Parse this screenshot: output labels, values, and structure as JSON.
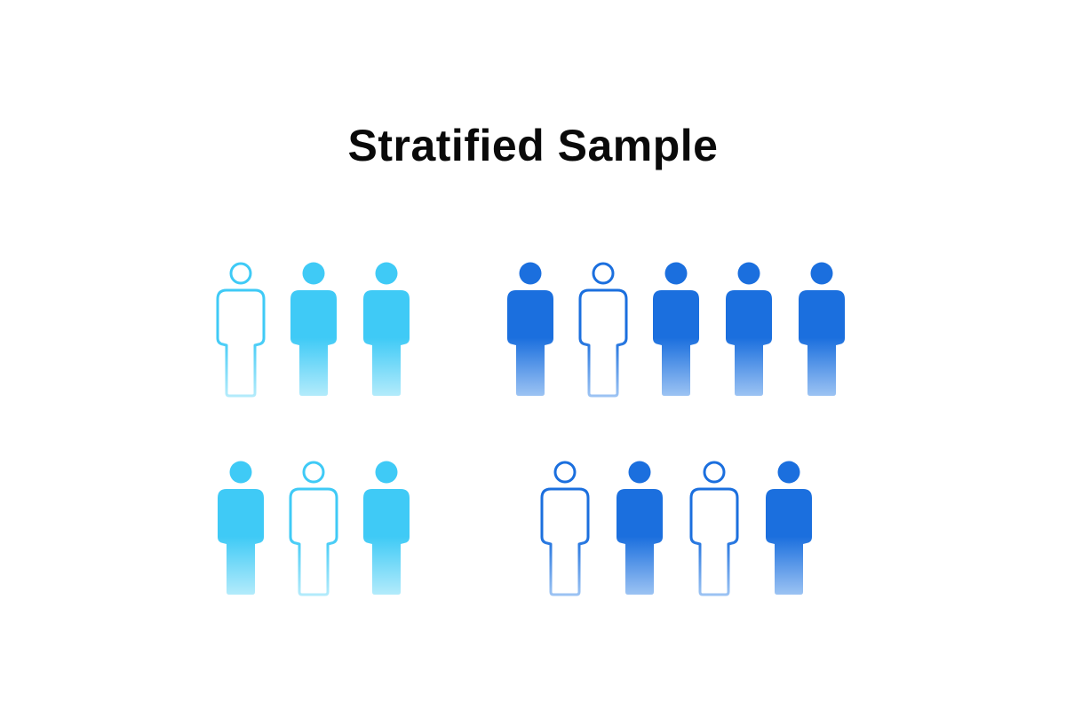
{
  "title": "Stratified Sample",
  "colors": {
    "stratum_light": {
      "top": "#3fcaf6",
      "bottom": "#b3ebfb"
    },
    "stratum_dark": {
      "top": "#1b6fde",
      "bottom": "#9cc3f3"
    }
  },
  "groups": [
    {
      "stratum": "stratum_light",
      "figures": [
        "outline",
        "filled",
        "filled"
      ]
    },
    {
      "stratum": "stratum_dark",
      "figures": [
        "filled",
        "outline",
        "filled",
        "filled",
        "filled"
      ]
    },
    {
      "stratum": "stratum_light",
      "figures": [
        "filled",
        "outline",
        "filled"
      ]
    },
    {
      "stratum": "stratum_dark",
      "figures": [
        "outline",
        "filled",
        "outline",
        "filled"
      ]
    }
  ],
  "icons": {
    "figure": "person-icon"
  }
}
